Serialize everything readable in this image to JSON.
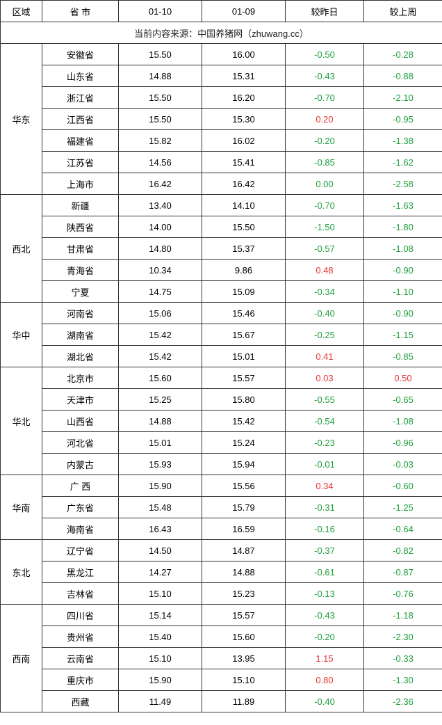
{
  "headers": {
    "region": "区域",
    "province": "省 市",
    "date1": "01-10",
    "date2": "01-09",
    "vsYesterday": "较昨日",
    "vsLastWeek": "较上周"
  },
  "sourceLine": "当前内容来源：中国养猪网（zhuwang.cc）",
  "colors": {
    "negative": "#1e9e3c",
    "positive": "#e63434",
    "border": "#333333",
    "text": "#222222"
  },
  "regions": [
    {
      "name": "华东",
      "rows": [
        {
          "prov": "安徽省",
          "d1": "15.50",
          "d2": "16.00",
          "vy": "-0.50",
          "vyc": "neg",
          "vw": "-0.28",
          "vwc": "neg"
        },
        {
          "prov": "山东省",
          "d1": "14.88",
          "d2": "15.31",
          "vy": "-0.43",
          "vyc": "neg",
          "vw": "-0.88",
          "vwc": "neg"
        },
        {
          "prov": "浙江省",
          "d1": "15.50",
          "d2": "16.20",
          "vy": "-0.70",
          "vyc": "neg",
          "vw": "-2.10",
          "vwc": "neg"
        },
        {
          "prov": "江西省",
          "d1": "15.50",
          "d2": "15.30",
          "vy": "0.20",
          "vyc": "pos",
          "vw": "-0.95",
          "vwc": "neg"
        },
        {
          "prov": "福建省",
          "d1": "15.82",
          "d2": "16.02",
          "vy": "-0.20",
          "vyc": "neg",
          "vw": "-1.38",
          "vwc": "neg"
        },
        {
          "prov": "江苏省",
          "d1": "14.56",
          "d2": "15.41",
          "vy": "-0.85",
          "vyc": "neg",
          "vw": "-1.62",
          "vwc": "neg"
        },
        {
          "prov": "上海市",
          "d1": "16.42",
          "d2": "16.42",
          "vy": "0.00",
          "vyc": "zero",
          "vw": "-2.58",
          "vwc": "neg"
        }
      ]
    },
    {
      "name": "西北",
      "rows": [
        {
          "prov": "新疆",
          "d1": "13.40",
          "d2": "14.10",
          "vy": "-0.70",
          "vyc": "neg",
          "vw": "-1.63",
          "vwc": "neg"
        },
        {
          "prov": "陕西省",
          "d1": "14.00",
          "d2": "15.50",
          "vy": "-1.50",
          "vyc": "neg",
          "vw": "-1.80",
          "vwc": "neg"
        },
        {
          "prov": "甘肃省",
          "d1": "14.80",
          "d2": "15.37",
          "vy": "-0.57",
          "vyc": "neg",
          "vw": "-1.08",
          "vwc": "neg"
        },
        {
          "prov": "青海省",
          "d1": "10.34",
          "d2": "9.86",
          "vy": "0.48",
          "vyc": "pos",
          "vw": "-0.90",
          "vwc": "neg"
        },
        {
          "prov": "宁夏",
          "d1": "14.75",
          "d2": "15.09",
          "vy": "-0.34",
          "vyc": "neg",
          "vw": "-1.10",
          "vwc": "neg"
        }
      ]
    },
    {
      "name": "华中",
      "rows": [
        {
          "prov": "河南省",
          "d1": "15.06",
          "d2": "15.46",
          "vy": "-0.40",
          "vyc": "neg",
          "vw": "-0.90",
          "vwc": "neg"
        },
        {
          "prov": "湖南省",
          "d1": "15.42",
          "d2": "15.67",
          "vy": "-0.25",
          "vyc": "neg",
          "vw": "-1.15",
          "vwc": "neg"
        },
        {
          "prov": "湖北省",
          "d1": "15.42",
          "d2": "15.01",
          "vy": "0.41",
          "vyc": "pos",
          "vw": "-0.85",
          "vwc": "neg"
        }
      ]
    },
    {
      "name": "华北",
      "rows": [
        {
          "prov": "北京市",
          "d1": "15.60",
          "d2": "15.57",
          "vy": "0.03",
          "vyc": "pos",
          "vw": "0.50",
          "vwc": "pos"
        },
        {
          "prov": "天津市",
          "d1": "15.25",
          "d2": "15.80",
          "vy": "-0.55",
          "vyc": "neg",
          "vw": "-0.65",
          "vwc": "neg"
        },
        {
          "prov": "山西省",
          "d1": "14.88",
          "d2": "15.42",
          "vy": "-0.54",
          "vyc": "neg",
          "vw": "-1.08",
          "vwc": "neg"
        },
        {
          "prov": "河北省",
          "d1": "15.01",
          "d2": "15.24",
          "vy": "-0.23",
          "vyc": "neg",
          "vw": "-0.96",
          "vwc": "neg"
        },
        {
          "prov": "内蒙古",
          "d1": "15.93",
          "d2": "15.94",
          "vy": "-0.01",
          "vyc": "neg",
          "vw": "-0.03",
          "vwc": "neg"
        }
      ]
    },
    {
      "name": "华南",
      "rows": [
        {
          "prov": "广 西",
          "d1": "15.90",
          "d2": "15.56",
          "vy": "0.34",
          "vyc": "pos",
          "vw": "-0.60",
          "vwc": "neg"
        },
        {
          "prov": "广东省",
          "d1": "15.48",
          "d2": "15.79",
          "vy": "-0.31",
          "vyc": "neg",
          "vw": "-1.25",
          "vwc": "neg"
        },
        {
          "prov": "海南省",
          "d1": "16.43",
          "d2": "16.59",
          "vy": "-0.16",
          "vyc": "neg",
          "vw": "-0.64",
          "vwc": "neg"
        }
      ]
    },
    {
      "name": "东北",
      "rows": [
        {
          "prov": "辽宁省",
          "d1": "14.50",
          "d2": "14.87",
          "vy": "-0.37",
          "vyc": "neg",
          "vw": "-0.82",
          "vwc": "neg"
        },
        {
          "prov": "黑龙江",
          "d1": "14.27",
          "d2": "14.88",
          "vy": "-0.61",
          "vyc": "neg",
          "vw": "-0.87",
          "vwc": "neg"
        },
        {
          "prov": "吉林省",
          "d1": "15.10",
          "d2": "15.23",
          "vy": "-0.13",
          "vyc": "neg",
          "vw": "-0.76",
          "vwc": "neg"
        }
      ]
    },
    {
      "name": "西南",
      "rows": [
        {
          "prov": "四川省",
          "d1": "15.14",
          "d2": "15.57",
          "vy": "-0.43",
          "vyc": "neg",
          "vw": "-1.18",
          "vwc": "neg"
        },
        {
          "prov": "贵州省",
          "d1": "15.40",
          "d2": "15.60",
          "vy": "-0.20",
          "vyc": "neg",
          "vw": "-2.30",
          "vwc": "neg"
        },
        {
          "prov": "云南省",
          "d1": "15.10",
          "d2": "13.95",
          "vy": "1.15",
          "vyc": "pos",
          "vw": "-0.33",
          "vwc": "neg"
        },
        {
          "prov": "重庆市",
          "d1": "15.90",
          "d2": "15.10",
          "vy": "0.80",
          "vyc": "pos",
          "vw": "-1.30",
          "vwc": "neg"
        },
        {
          "prov": "西藏",
          "d1": "11.49",
          "d2": "11.89",
          "vy": "-0.40",
          "vyc": "neg",
          "vw": "-2.36",
          "vwc": "neg"
        }
      ]
    }
  ]
}
